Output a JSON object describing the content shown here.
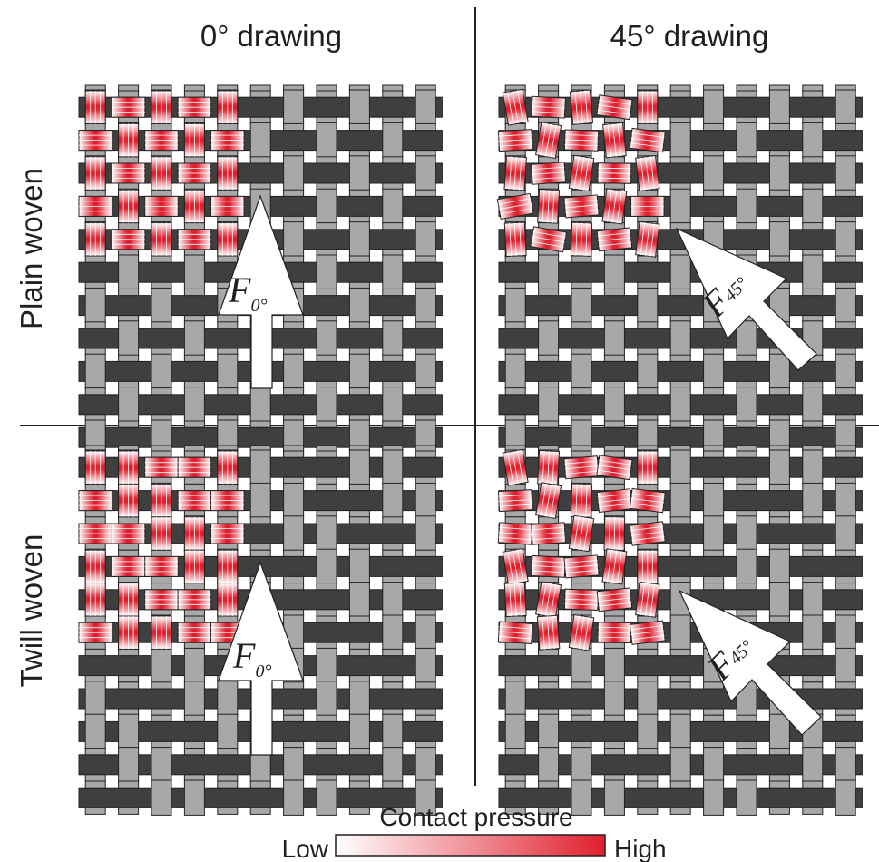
{
  "columns": {
    "left": "0° drawing",
    "right": "45° drawing"
  },
  "rows": {
    "top": "Plain woven",
    "bottom": "Twill woven"
  },
  "panels": [
    {
      "id": "plain-0",
      "weave": "plain",
      "drawing_angle_deg": 0,
      "force_symbol": "F",
      "force_subscript": "0°"
    },
    {
      "id": "plain-45",
      "weave": "plain",
      "drawing_angle_deg": 45,
      "force_symbol": "F",
      "force_subscript": "45°"
    },
    {
      "id": "twill-0",
      "weave": "twill",
      "drawing_angle_deg": 0,
      "force_symbol": "F",
      "force_subscript": "0°"
    },
    {
      "id": "twill-45",
      "weave": "twill",
      "drawing_angle_deg": 45,
      "force_symbol": "F",
      "force_subscript": "45°"
    }
  ],
  "legend": {
    "title": "Contact pressure",
    "low_label": "Low",
    "high_label": "High",
    "colors": {
      "low": "#ffffff",
      "high": "#e0202e"
    }
  },
  "colors": {
    "dark_yarn": "#3f3f3f",
    "light_yarn": "#a8a8a8",
    "contact_high": "#e0202e",
    "divider": "#231f20"
  }
}
